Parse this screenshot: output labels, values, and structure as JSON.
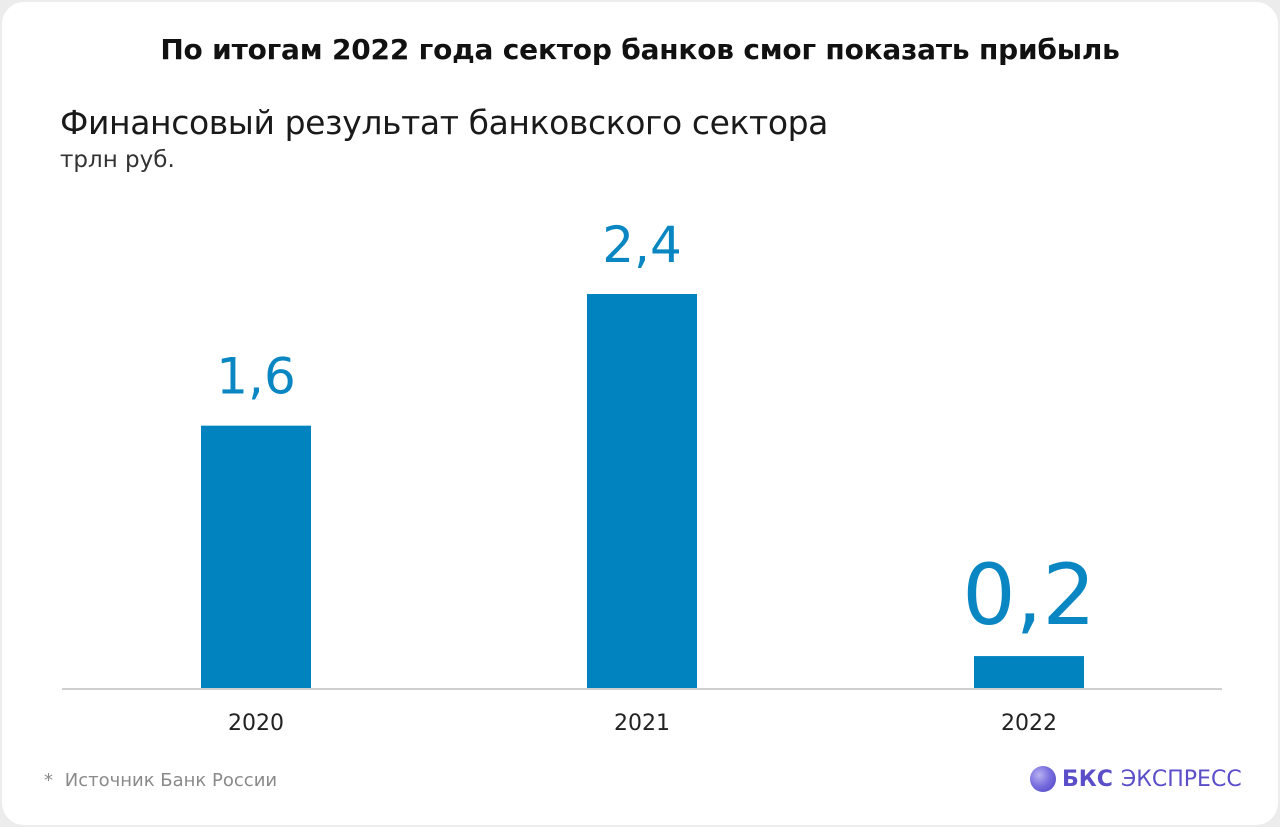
{
  "headline": "По итогам 2022 года сектор банков смог показать прибыль",
  "footnote": {
    "marker": "*",
    "text": "Источник  Банк России"
  },
  "brand": {
    "icon": "bks-logo-icon",
    "name_strong": "БКС",
    "name_rest": "ЭКСПРЕСС",
    "color": "#5b4fc9"
  },
  "chart_data": {
    "type": "bar",
    "title": "Финансовый результат банковского сектора",
    "subtitle": "трлн руб.",
    "categories": [
      "2020",
      "2021",
      "2022"
    ],
    "values": [
      1.6,
      2.4,
      0.2
    ],
    "value_labels": [
      "1,6",
      "2,4",
      "0,2"
    ],
    "ylim": [
      0,
      2.4
    ],
    "grid": false,
    "bar_color": "#0083be",
    "label_color": "#0a87c2"
  }
}
